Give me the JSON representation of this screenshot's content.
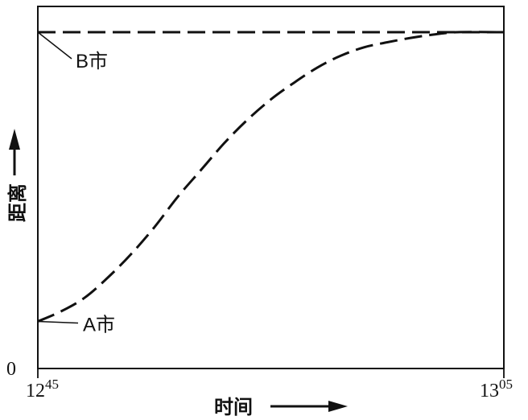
{
  "chart_data": {
    "type": "line",
    "xlabel": "时间",
    "ylabel": "距离",
    "x_ticks": [
      {
        "main": "12",
        "sup": "45"
      },
      {
        "main": "13",
        "sup": "05"
      }
    ],
    "y_ticks": [
      "0"
    ],
    "series": [
      {
        "style": "dashed",
        "points": [
          {
            "t": 0.0,
            "d": 0.14
          },
          {
            "t": 0.05,
            "d": 0.17
          },
          {
            "t": 0.1,
            "d": 0.21
          },
          {
            "t": 0.15,
            "d": 0.27
          },
          {
            "t": 0.2,
            "d": 0.34
          },
          {
            "t": 0.25,
            "d": 0.42
          },
          {
            "t": 0.3,
            "d": 0.51
          },
          {
            "t": 0.35,
            "d": 0.59
          },
          {
            "t": 0.4,
            "d": 0.67
          },
          {
            "t": 0.45,
            "d": 0.74
          },
          {
            "t": 0.5,
            "d": 0.8
          },
          {
            "t": 0.55,
            "d": 0.85
          },
          {
            "t": 0.6,
            "d": 0.895
          },
          {
            "t": 0.65,
            "d": 0.93
          },
          {
            "t": 0.7,
            "d": 0.955
          },
          {
            "t": 0.75,
            "d": 0.97
          },
          {
            "t": 0.8,
            "d": 0.983
          },
          {
            "t": 0.85,
            "d": 0.993
          },
          {
            "t": 0.9,
            "d": 1.0
          },
          {
            "t": 1.0,
            "d": 1.0
          }
        ]
      },
      {
        "style": "dashed",
        "points": [
          {
            "t": 0.0,
            "d": 1.0
          },
          {
            "t": 1.0,
            "d": 1.0
          }
        ]
      }
    ],
    "annotations": [
      {
        "text": "A市",
        "target": {
          "t": 0.0,
          "d": 0.14
        }
      },
      {
        "text": "B市",
        "target": {
          "t": 0.0,
          "d": 1.0
        }
      }
    ],
    "grid": false
  }
}
